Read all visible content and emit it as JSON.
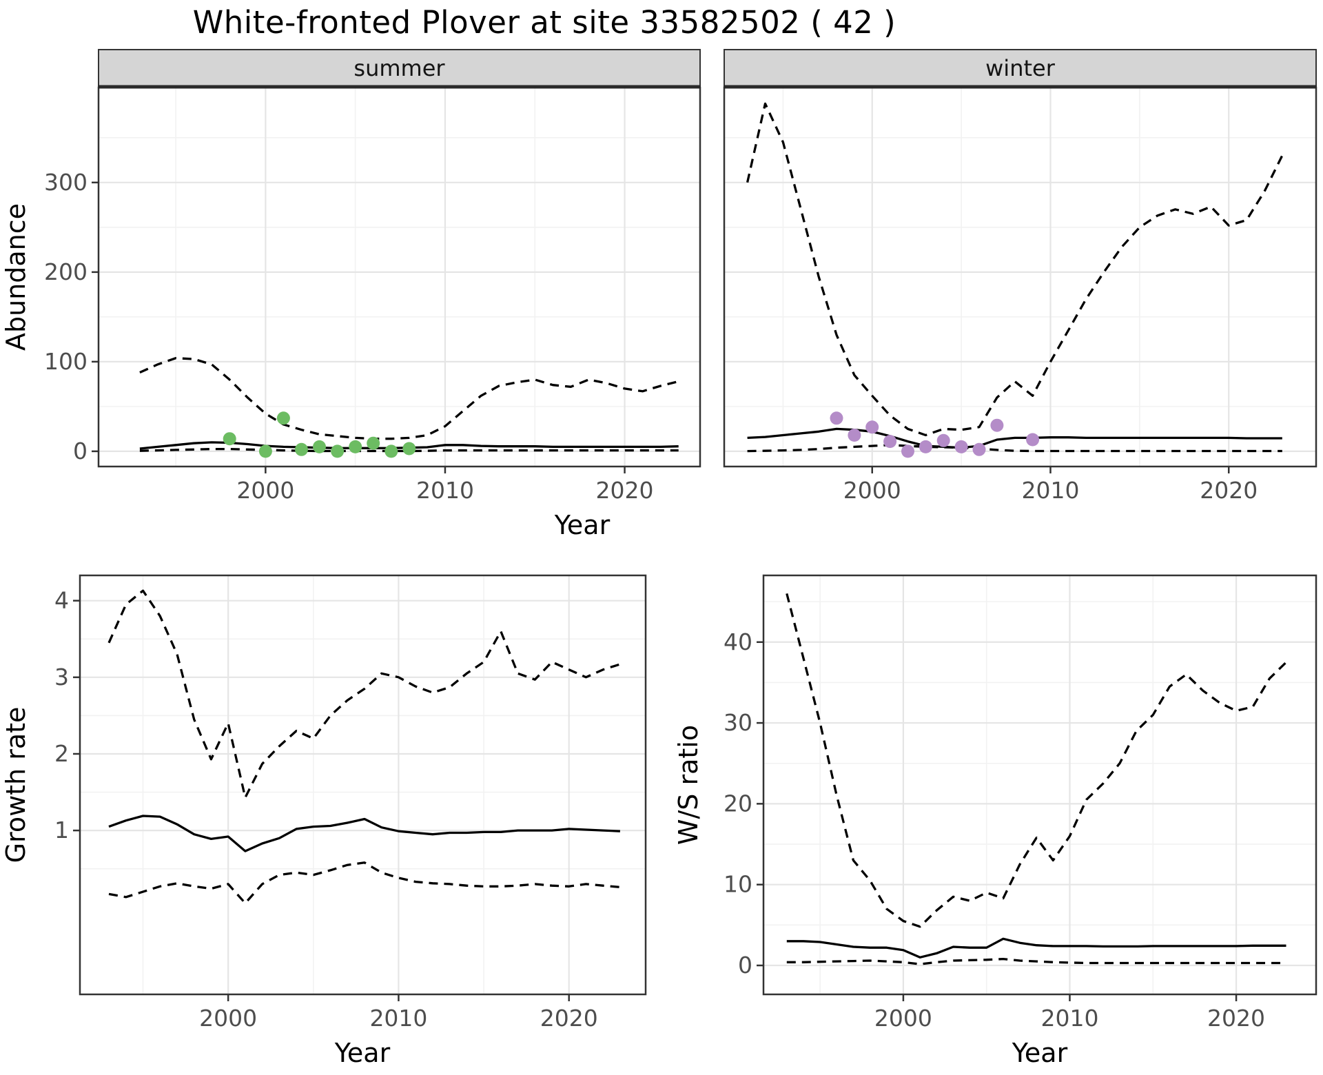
{
  "title": "White-fronted Plover at site 33582502 ( 42 )",
  "colors": {
    "summer_points": "#6cbc62",
    "winter_points": "#b48cc8",
    "line": "#000000",
    "strip_bg": "#d5d5d5",
    "strip_text": "#141414",
    "grid_major": "#e5e5e5",
    "grid_minor": "#f2f2f2",
    "panel_border": "#333333",
    "tick_text": "#4d4d4d",
    "axis_title_text": "#000000"
  },
  "chart_data": [
    {
      "id": "abundance_summer",
      "type": "line",
      "facet": "summer",
      "ylabel": "Abundance",
      "xlabel": "Year",
      "x_ticks": [
        2000,
        2010,
        2020
      ],
      "y_ticks": [
        0,
        100,
        200,
        300
      ],
      "xlim": [
        1990.7,
        2024.2
      ],
      "ylim": [
        -17,
        406
      ],
      "years": [
        1993,
        1994,
        1995,
        1996,
        1997,
        1998,
        1999,
        2000,
        2001,
        2002,
        2003,
        2004,
        2005,
        2006,
        2007,
        2008,
        2009,
        2010,
        2011,
        2012,
        2013,
        2014,
        2015,
        2016,
        2017,
        2018,
        2019,
        2020,
        2021,
        2022,
        2023
      ],
      "series": [
        {
          "name": "mean",
          "style": "solid",
          "values": [
            3,
            5,
            7,
            9,
            10,
            9.5,
            8,
            6,
            5,
            4.5,
            4,
            3.5,
            3.5,
            3.5,
            3.5,
            4,
            4.5,
            7,
            7,
            6,
            5.5,
            5.5,
            5.5,
            5,
            5,
            5,
            5,
            5,
            5,
            5,
            5.5
          ]
        },
        {
          "name": "upper-ci",
          "style": "dashed",
          "values": [
            88,
            97,
            104,
            103,
            97,
            80,
            60,
            42,
            30,
            24,
            19,
            17,
            15,
            14,
            14,
            15,
            18,
            28,
            45,
            62,
            73,
            77,
            80,
            74,
            72,
            80,
            76,
            70,
            67,
            73,
            78
          ]
        },
        {
          "name": "lower-ci",
          "style": "dashed",
          "values": [
            0.5,
            1,
            1.5,
            2,
            2.5,
            2.5,
            2,
            1.5,
            1,
            0.5,
            0.3,
            0.3,
            0.3,
            0.3,
            0.3,
            0.3,
            0.5,
            1,
            1,
            1,
            1,
            1,
            1,
            1,
            1,
            1,
            1,
            1,
            1,
            1,
            1
          ]
        }
      ],
      "points": {
        "name": "observed-abundance-summer",
        "color_key": "summer_points",
        "years": [
          1998,
          2000,
          2001,
          2002,
          2003,
          2004,
          2005,
          2006,
          2007,
          2008
        ],
        "values": [
          14,
          0,
          37,
          2,
          5,
          0,
          5,
          9,
          0,
          3
        ]
      }
    },
    {
      "id": "abundance_winter",
      "type": "line",
      "facet": "winter",
      "ylabel": "",
      "xlabel": "",
      "x_ticks": [
        2000,
        2010,
        2020
      ],
      "y_ticks": [
        0,
        100,
        200,
        300
      ],
      "xlim": [
        1991.7,
        2024.9
      ],
      "ylim": [
        -17,
        406
      ],
      "years": [
        1993,
        1994,
        1995,
        1996,
        1997,
        1998,
        1999,
        2000,
        2001,
        2002,
        2003,
        2004,
        2005,
        2006,
        2007,
        2008,
        2009,
        2010,
        2011,
        2012,
        2013,
        2014,
        2015,
        2016,
        2017,
        2018,
        2019,
        2020,
        2021,
        2022,
        2023
      ],
      "series": [
        {
          "name": "mean",
          "style": "solid",
          "values": [
            15,
            16,
            18,
            20,
            22,
            25,
            24,
            22,
            17,
            11,
            6,
            5,
            4,
            6,
            13,
            15,
            15,
            15.5,
            15.5,
            15,
            15,
            15,
            15,
            15,
            15,
            15,
            15,
            15,
            14.5,
            14.5,
            14.5
          ]
        },
        {
          "name": "upper-ci",
          "style": "dashed",
          "values": [
            300,
            388,
            345,
            270,
            195,
            130,
            85,
            62,
            40,
            25,
            18,
            25,
            24,
            27,
            60,
            78,
            62,
            100,
            135,
            170,
            200,
            228,
            250,
            263,
            270,
            265,
            273,
            252,
            258,
            290,
            330
          ]
        },
        {
          "name": "lower-ci",
          "style": "dashed",
          "values": [
            0.2,
            0.5,
            1,
            1.5,
            2.5,
            4,
            5,
            6,
            7,
            6,
            5,
            4.5,
            4,
            3,
            1.5,
            0.5,
            0.3,
            0.3,
            0.3,
            0.3,
            0.3,
            0.3,
            0.3,
            0.3,
            0.3,
            0.3,
            0.3,
            0.3,
            0.3,
            0.3,
            0.3
          ]
        }
      ],
      "points": {
        "name": "observed-abundance-winter",
        "color_key": "winter_points",
        "years": [
          1998,
          1999,
          2000,
          2001,
          2002,
          2003,
          2004,
          2005,
          2006,
          2007,
          2009
        ],
        "values": [
          37,
          18,
          27,
          11,
          0,
          5,
          12,
          5,
          2,
          29,
          13
        ]
      }
    },
    {
      "id": "growth_rate",
      "type": "line",
      "facet": "",
      "ylabel": "Growth rate",
      "xlabel": "Year",
      "x_ticks": [
        2000,
        2010,
        2020
      ],
      "y_ticks": [
        1,
        2,
        3,
        4
      ],
      "xlim": [
        1991.3,
        2024.5
      ],
      "ylim": [
        -1.14,
        4.33
      ],
      "years": [
        1993,
        1994,
        1995,
        1996,
        1997,
        1998,
        1999,
        2000,
        2001,
        2002,
        2003,
        2004,
        2005,
        2006,
        2007,
        2008,
        2009,
        2010,
        2011,
        2012,
        2013,
        2014,
        2015,
        2016,
        2017,
        2018,
        2019,
        2020,
        2021,
        2022,
        2023
      ],
      "series": [
        {
          "name": "mean",
          "style": "solid",
          "values": [
            1.05,
            1.13,
            1.19,
            1.18,
            1.08,
            0.95,
            0.89,
            0.92,
            0.73,
            0.83,
            0.9,
            1.02,
            1.05,
            1.06,
            1.1,
            1.15,
            1.04,
            0.99,
            0.97,
            0.95,
            0.97,
            0.97,
            0.98,
            0.98,
            1,
            1,
            1,
            1.02,
            1.01,
            1,
            0.99
          ]
        },
        {
          "name": "upper-ci",
          "style": "dashed",
          "values": [
            3.45,
            3.95,
            4.13,
            3.8,
            3.3,
            2.45,
            1.93,
            2.4,
            1.43,
            1.87,
            2.1,
            2.3,
            2.2,
            2.5,
            2.7,
            2.85,
            3.05,
            3,
            2.88,
            2.8,
            2.87,
            3.05,
            3.2,
            3.6,
            3.05,
            2.97,
            3.2,
            3.1,
            3,
            3.1,
            3.17
          ]
        },
        {
          "name": "lower-ci",
          "style": "dashed",
          "values": [
            0.17,
            0.13,
            0.2,
            0.27,
            0.31,
            0.27,
            0.24,
            0.3,
            0.05,
            0.3,
            0.42,
            0.45,
            0.42,
            0.48,
            0.55,
            0.58,
            0.45,
            0.38,
            0.33,
            0.31,
            0.3,
            0.28,
            0.27,
            0.27,
            0.28,
            0.3,
            0.28,
            0.27,
            0.3,
            0.28,
            0.26
          ]
        }
      ],
      "points": null
    },
    {
      "id": "ws_ratio",
      "type": "line",
      "facet": "",
      "ylabel": "W/S ratio",
      "xlabel": "Year",
      "x_ticks": [
        2000,
        2010,
        2020
      ],
      "y_ticks": [
        0,
        10,
        20,
        30,
        40
      ],
      "xlim": [
        1991.6,
        2024.8
      ],
      "ylim": [
        -3.58,
        48.25
      ],
      "years": [
        1993,
        1994,
        1995,
        1996,
        1997,
        1998,
        1999,
        2000,
        2001,
        2002,
        2003,
        2004,
        2005,
        2006,
        2007,
        2008,
        2009,
        2010,
        2011,
        2012,
        2013,
        2014,
        2015,
        2016,
        2017,
        2018,
        2019,
        2020,
        2021,
        2022,
        2023
      ],
      "series": [
        {
          "name": "mean",
          "style": "solid",
          "values": [
            3,
            3,
            2.9,
            2.6,
            2.3,
            2.2,
            2.2,
            1.9,
            1,
            1.5,
            2.3,
            2.2,
            2.2,
            3.3,
            2.8,
            2.5,
            2.4,
            2.4,
            2.4,
            2.35,
            2.35,
            2.35,
            2.4,
            2.4,
            2.4,
            2.4,
            2.4,
            2.4,
            2.45,
            2.45,
            2.45
          ]
        },
        {
          "name": "upper-ci",
          "style": "dashed",
          "values": [
            46,
            38,
            30,
            21,
            13,
            10.5,
            7,
            5.5,
            4.8,
            6.8,
            8.5,
            8,
            9,
            8.3,
            12.5,
            15.8,
            13,
            16,
            20.5,
            22.5,
            25,
            29,
            31,
            34.5,
            36,
            34,
            32.5,
            31.5,
            32,
            35.5,
            37.5
          ]
        },
        {
          "name": "lower-ci",
          "style": "dashed",
          "values": [
            0.4,
            0.4,
            0.45,
            0.5,
            0.55,
            0.6,
            0.5,
            0.4,
            0.15,
            0.4,
            0.6,
            0.65,
            0.7,
            0.8,
            0.6,
            0.5,
            0.4,
            0.35,
            0.3,
            0.3,
            0.3,
            0.3,
            0.3,
            0.3,
            0.3,
            0.3,
            0.3,
            0.3,
            0.3,
            0.3,
            0.3
          ]
        }
      ],
      "points": null
    }
  ]
}
